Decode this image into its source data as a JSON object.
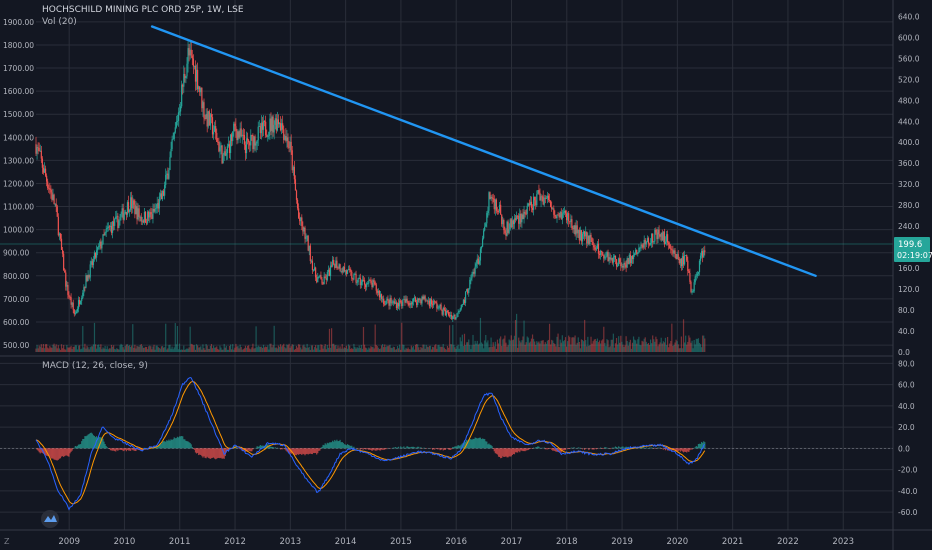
{
  "header": {
    "symbol": "HOCHSCHILD MINING PLC ORD 25P, 1W, LSE",
    "volume_indicator": "Vol (20)",
    "macd_indicator": "MACD (12, 26, close, 9)"
  },
  "price_badge": {
    "value": "199.6",
    "countdown": "02:19:07",
    "color": "#26a69a"
  },
  "footer": {
    "corner_label": "Z"
  },
  "colors": {
    "background": "#131722",
    "grid": "#2a2e39",
    "up": "#26a69a",
    "down": "#ef5350",
    "trendline": "#2196f3",
    "macd_line": "#2962ff",
    "signal_line": "#ff9800",
    "text": "#b2b5be"
  },
  "chart_data": {
    "type": "candlestick",
    "title": "HOCHSCHILD MINING PLC ORD 25P, 1W, LSE",
    "x_ticks": [
      "2009",
      "2010",
      "2011",
      "2012",
      "2013",
      "2014",
      "2015",
      "2016",
      "2017",
      "2018",
      "2019",
      "2020",
      "2021",
      "2022",
      "2023"
    ],
    "x_range": [
      2008.4,
      2023.9
    ],
    "price_axis_labels": [
      "1900.00",
      "1800.00",
      "1700.00",
      "1600.00",
      "1500.00",
      "1400.00",
      "1300.00",
      "1200.00",
      "1100.00",
      "1000.00",
      "900.00",
      "800.00",
      "700.00",
      "600.00",
      "500.00"
    ],
    "price_range": [
      470,
      1960
    ],
    "volume_axis_labels": [
      "640.0",
      "600.0",
      "560.0",
      "520.0",
      "480.0",
      "440.0",
      "400.0",
      "360.0",
      "320.0",
      "280.0",
      "240.0",
      "200.0",
      "160.0",
      "120.0",
      "80.0",
      "40.0",
      "0.0"
    ],
    "volume_range": [
      0,
      656
    ],
    "price_anchors": [
      [
        2008.4,
        1370
      ],
      [
        2008.55,
        1250
      ],
      [
        2008.75,
        1100
      ],
      [
        2008.95,
        750
      ],
      [
        2009.1,
        630
      ],
      [
        2009.3,
        780
      ],
      [
        2009.5,
        900
      ],
      [
        2009.7,
        1000
      ],
      [
        2009.9,
        1040
      ],
      [
        2010.1,
        1120
      ],
      [
        2010.3,
        1050
      ],
      [
        2010.5,
        1060
      ],
      [
        2010.7,
        1150
      ],
      [
        2010.9,
        1400
      ],
      [
        2011.05,
        1620
      ],
      [
        2011.15,
        1760
      ],
      [
        2011.3,
        1680
      ],
      [
        2011.45,
        1500
      ],
      [
        2011.6,
        1440
      ],
      [
        2011.8,
        1300
      ],
      [
        2012.0,
        1440
      ],
      [
        2012.2,
        1360
      ],
      [
        2012.5,
        1430
      ],
      [
        2012.8,
        1480
      ],
      [
        2013.0,
        1350
      ],
      [
        2013.15,
        1050
      ],
      [
        2013.3,
        950
      ],
      [
        2013.45,
        800
      ],
      [
        2013.6,
        770
      ],
      [
        2013.8,
        860
      ],
      [
        2014.0,
        820
      ],
      [
        2014.2,
        780
      ],
      [
        2014.5,
        760
      ],
      [
        2014.7,
        690
      ],
      [
        2014.9,
        680
      ],
      [
        2015.2,
        690
      ],
      [
        2015.4,
        700
      ],
      [
        2015.6,
        680
      ],
      [
        2015.8,
        640
      ],
      [
        2016.0,
        620
      ],
      [
        2016.15,
        700
      ],
      [
        2016.3,
        810
      ],
      [
        2016.45,
        900
      ],
      [
        2016.6,
        1150
      ],
      [
        2016.75,
        1100
      ],
      [
        2016.9,
        1000
      ],
      [
        2017.1,
        1050
      ],
      [
        2017.3,
        1080
      ],
      [
        2017.5,
        1150
      ],
      [
        2017.65,
        1130
      ],
      [
        2017.8,
        1080
      ],
      [
        2018.0,
        1060
      ],
      [
        2018.2,
        980
      ],
      [
        2018.4,
        960
      ],
      [
        2018.6,
        900
      ],
      [
        2018.8,
        880
      ],
      [
        2019.0,
        850
      ],
      [
        2019.2,
        880
      ],
      [
        2019.4,
        940
      ],
      [
        2019.6,
        980
      ],
      [
        2019.8,
        960
      ],
      [
        2019.95,
        900
      ],
      [
        2020.05,
        860
      ],
      [
        2020.15,
        870
      ],
      [
        2020.25,
        730
      ],
      [
        2020.35,
        800
      ],
      [
        2020.45,
        900
      ],
      [
        2020.5,
        910
      ]
    ],
    "trendline": {
      "from": [
        2010.5,
        1880
      ],
      "to": [
        2022.5,
        800
      ]
    },
    "macd": {
      "y_axis_labels": [
        "80.0",
        "60.0",
        "40.0",
        "20.0",
        "0.0",
        "-20.0",
        "-40.0",
        "-60.0"
      ],
      "y_range": [
        -75,
        85
      ],
      "macd_anchors": [
        [
          2008.4,
          8
        ],
        [
          2008.6,
          -10
        ],
        [
          2008.8,
          -40
        ],
        [
          2009.0,
          -57
        ],
        [
          2009.2,
          -45
        ],
        [
          2009.4,
          -5
        ],
        [
          2009.6,
          20
        ],
        [
          2009.8,
          10
        ],
        [
          2010.0,
          5
        ],
        [
          2010.3,
          -2
        ],
        [
          2010.6,
          3
        ],
        [
          2010.85,
          30
        ],
        [
          2011.05,
          60
        ],
        [
          2011.2,
          68
        ],
        [
          2011.4,
          45
        ],
        [
          2011.6,
          20
        ],
        [
          2011.8,
          -5
        ],
        [
          2012.0,
          3
        ],
        [
          2012.3,
          -8
        ],
        [
          2012.6,
          5
        ],
        [
          2012.9,
          3
        ],
        [
          2013.1,
          -15
        ],
        [
          2013.3,
          -30
        ],
        [
          2013.5,
          -42
        ],
        [
          2013.7,
          -25
        ],
        [
          2013.9,
          -5
        ],
        [
          2014.1,
          0
        ],
        [
          2014.4,
          -5
        ],
        [
          2014.7,
          -12
        ],
        [
          2015.0,
          -8
        ],
        [
          2015.3,
          -3
        ],
        [
          2015.6,
          -5
        ],
        [
          2015.9,
          -10
        ],
        [
          2016.1,
          0
        ],
        [
          2016.3,
          25
        ],
        [
          2016.5,
          50
        ],
        [
          2016.65,
          52
        ],
        [
          2016.8,
          30
        ],
        [
          2017.0,
          10
        ],
        [
          2017.3,
          3
        ],
        [
          2017.5,
          8
        ],
        [
          2017.7,
          5
        ],
        [
          2017.9,
          -5
        ],
        [
          2018.2,
          -3
        ],
        [
          2018.5,
          -6
        ],
        [
          2018.8,
          -5
        ],
        [
          2019.1,
          0
        ],
        [
          2019.4,
          2
        ],
        [
          2019.7,
          3
        ],
        [
          2020.0,
          -5
        ],
        [
          2020.2,
          -15
        ],
        [
          2020.35,
          -10
        ],
        [
          2020.5,
          5
        ]
      ]
    }
  }
}
